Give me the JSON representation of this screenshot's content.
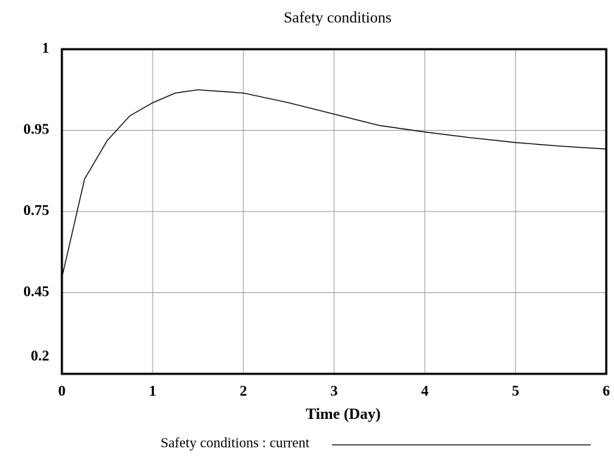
{
  "chart_data": {
    "type": "line",
    "title": "Safety conditions",
    "x_label": "Time (Day)",
    "x": [
      0,
      0.25,
      0.5,
      0.75,
      1,
      1.25,
      1.5,
      1.75,
      2,
      2.5,
      3,
      3.5,
      4,
      4.5,
      5,
      5.5,
      6
    ],
    "series": [
      {
        "name": "Safety conditions : current",
        "color": "#000000",
        "values": [
          0.506,
          0.83,
          0.925,
          0.959,
          0.967,
          0.973,
          0.975,
          0.974,
          0.973,
          0.967,
          0.96,
          0.953,
          0.946,
          0.932,
          0.92,
          0.911,
          0.904
        ]
      }
    ],
    "xlim": [
      0,
      6
    ],
    "xticks": [
      0,
      1,
      2,
      3,
      4,
      5,
      6
    ],
    "ylim": [
      0.2,
      1
    ],
    "yticks": [
      0.2,
      0.45,
      0.75,
      0.95,
      1
    ],
    "grid": true
  }
}
